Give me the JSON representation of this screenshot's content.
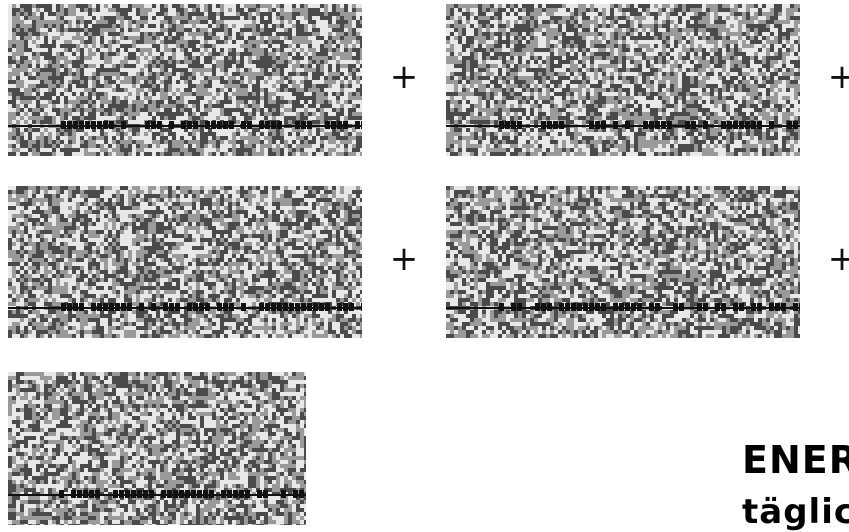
{
  "tiles": [
    {
      "id": "tile-1"
    },
    {
      "id": "tile-2"
    },
    {
      "id": "tile-3"
    },
    {
      "id": "tile-4"
    },
    {
      "id": "tile-5"
    }
  ],
  "operators": {
    "plus": "+"
  },
  "caption": {
    "title": "ENER",
    "subtitle": "täglic"
  },
  "colors": {
    "noise_light": "#e8e8e8",
    "noise_dark": "#4a4a4a",
    "band_dark": "#111111",
    "text": "#000000"
  }
}
